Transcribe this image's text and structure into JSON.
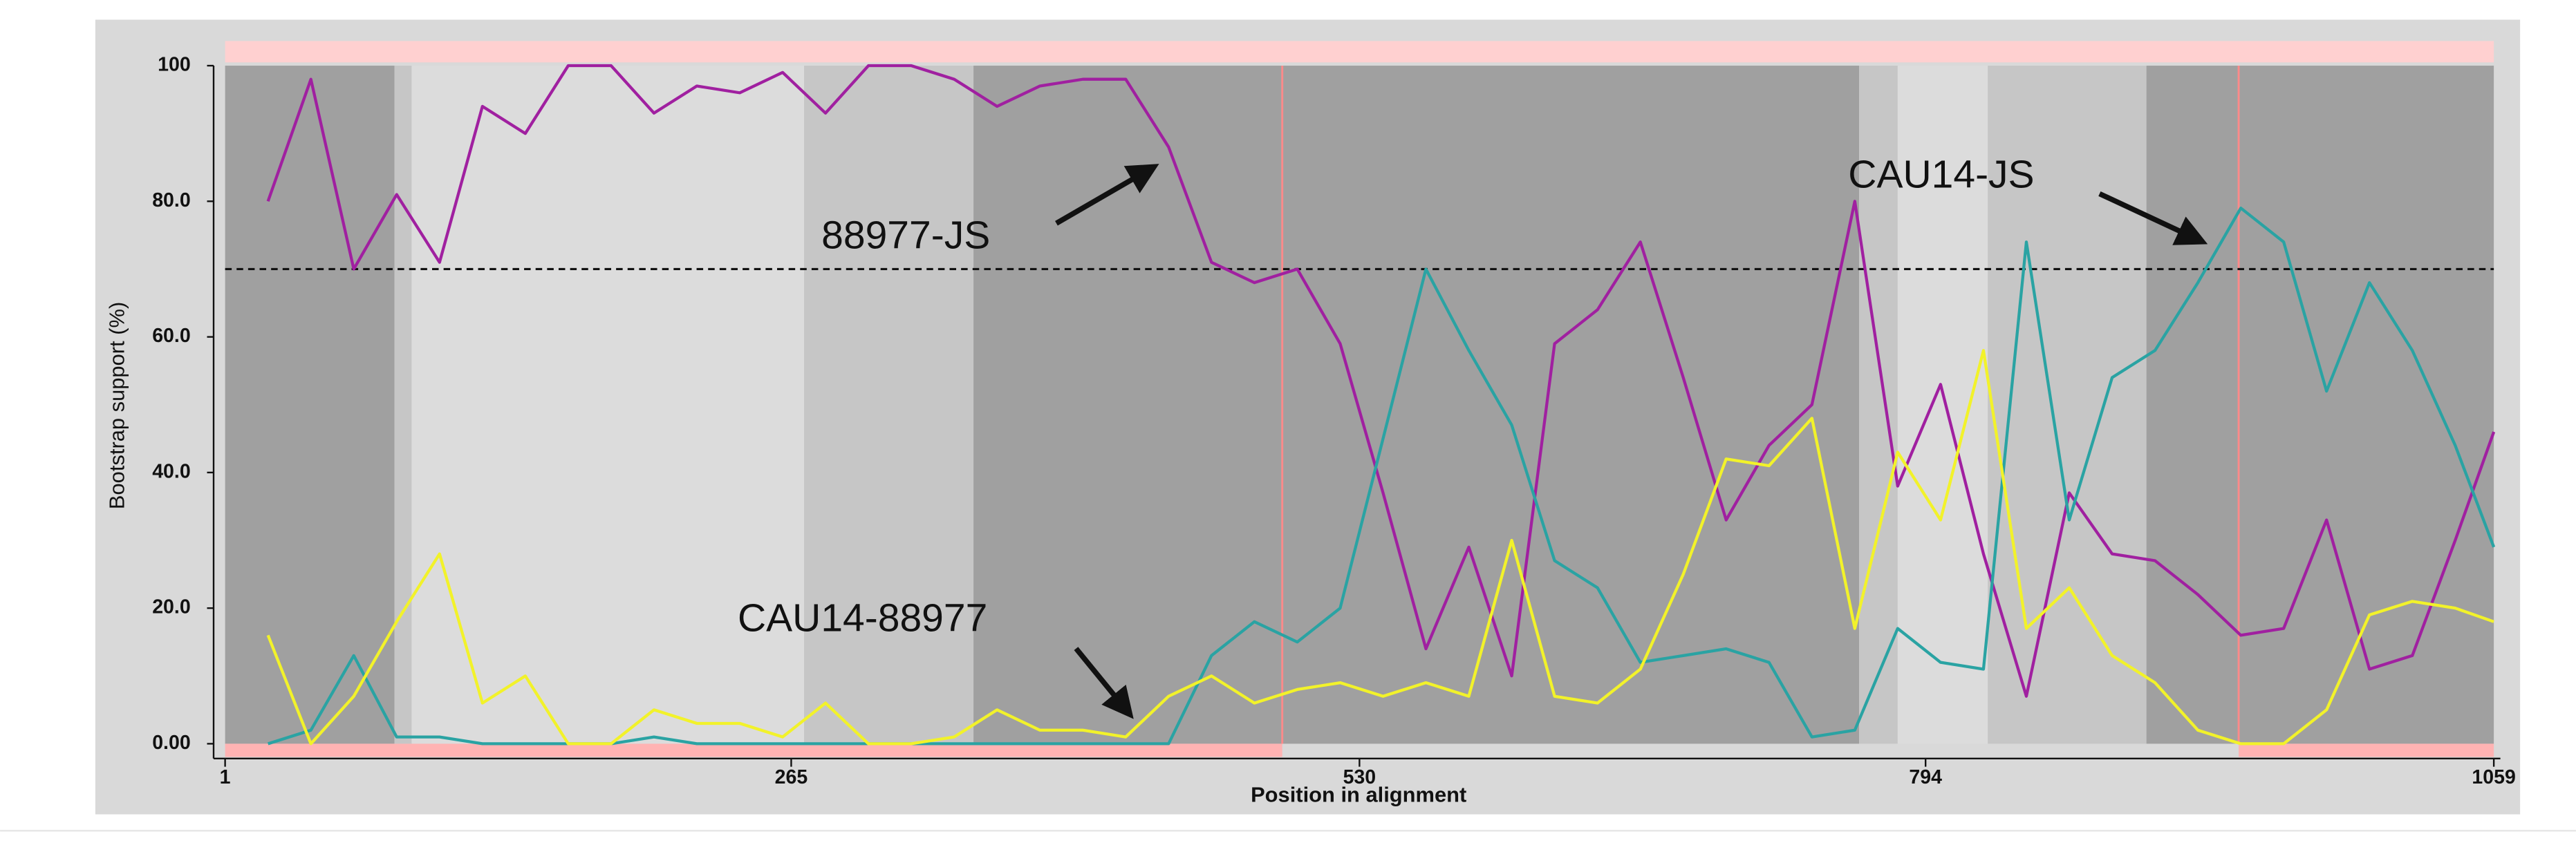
{
  "chart_data": {
    "type": "line",
    "x_label": "Position in alignment",
    "y_label": "Bootstrap support (%)",
    "xlim": [
      1,
      1059
    ],
    "xticks": [
      1,
      265,
      530,
      794,
      1059
    ],
    "ylim": [
      0,
      100
    ],
    "yticks": [
      {
        "value": 0,
        "label": "0.00"
      },
      {
        "value": 20,
        "label": "20.0"
      },
      {
        "value": 40,
        "label": "40.0"
      },
      {
        "value": 60,
        "label": "60.0"
      },
      {
        "value": 80,
        "label": "80.0"
      },
      100
    ],
    "threshold": 70,
    "breakpoints": [
      494,
      940
    ],
    "regions": [
      {
        "start": 1,
        "end": 80,
        "color": "#a0a0a0"
      },
      {
        "start": 80,
        "end": 88,
        "color": "#c6c6c6"
      },
      {
        "start": 88,
        "end": 271,
        "color": "#dcdcdc"
      },
      {
        "start": 271,
        "end": 350,
        "color": "#c6c6c6"
      },
      {
        "start": 350,
        "end": 763,
        "color": "#a0a0a0"
      },
      {
        "start": 763,
        "end": 781,
        "color": "#c6c6c6"
      },
      {
        "start": 781,
        "end": 823,
        "color": "#dcdcdc"
      },
      {
        "start": 823,
        "end": 897,
        "color": "#c6c6c6"
      },
      {
        "start": 897,
        "end": 1059,
        "color": "#a0a0a0"
      }
    ],
    "x": [
      21,
      41,
      61,
      81,
      101,
      121,
      141,
      161,
      181,
      201,
      221,
      241,
      261,
      281,
      301,
      321,
      341,
      361,
      381,
      401,
      421,
      441,
      461,
      481,
      501,
      521,
      541,
      561,
      581,
      601,
      621,
      641,
      661,
      681,
      701,
      721,
      741,
      761,
      781,
      801,
      821,
      841,
      861,
      881,
      901,
      921,
      941,
      961,
      981,
      1001,
      1021,
      1041,
      1059
    ],
    "series": [
      {
        "name": "88977-JS",
        "color": "#a020a0",
        "values": [
          80,
          98,
          70,
          81,
          71,
          94,
          90,
          100,
          100,
          93,
          97,
          96,
          99,
          93,
          100,
          100,
          98,
          94,
          97,
          98,
          98,
          88,
          71,
          68,
          70,
          59,
          37,
          14,
          29,
          10,
          59,
          64,
          74,
          54,
          33,
          44,
          50,
          80,
          38,
          53,
          28,
          7,
          37,
          28,
          27,
          22,
          16,
          17,
          33,
          11,
          13,
          30,
          46
        ]
      },
      {
        "name": "CAU14-JS",
        "color": "#2aa3a3",
        "values": [
          0,
          2,
          13,
          1,
          1,
          0,
          0,
          0,
          0,
          1,
          0,
          0,
          0,
          0,
          0,
          0,
          0,
          0,
          0,
          0,
          0,
          0,
          13,
          18,
          15,
          20,
          45,
          70,
          58,
          47,
          27,
          23,
          12,
          13,
          14,
          12,
          1,
          2,
          17,
          12,
          11,
          74,
          33,
          54,
          58,
          68,
          79,
          74,
          52,
          68,
          58,
          44,
          29
        ]
      },
      {
        "name": "CAU14-88977",
        "color": "#f2f22a",
        "values": [
          16,
          0,
          7,
          18,
          28,
          6,
          10,
          0,
          0,
          5,
          3,
          3,
          1,
          6,
          0,
          0,
          1,
          5,
          2,
          2,
          1,
          7,
          10,
          6,
          8,
          9,
          7,
          9,
          7,
          30,
          7,
          6,
          11,
          25,
          42,
          41,
          48,
          17,
          43,
          33,
          58,
          17,
          23,
          13,
          9,
          2,
          0,
          0,
          5,
          19,
          21,
          20,
          18
        ]
      }
    ]
  }
}
